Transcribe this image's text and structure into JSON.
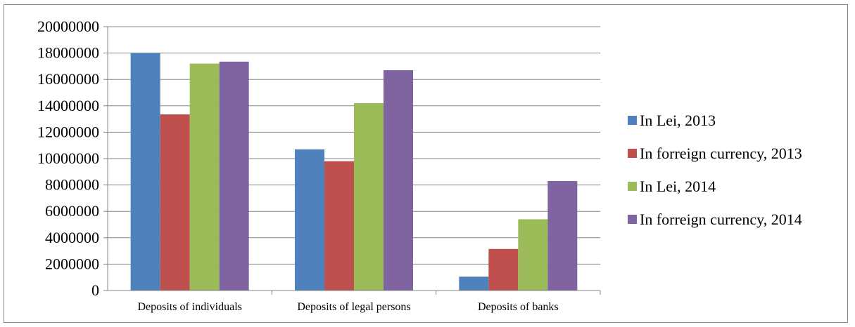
{
  "chart_data": {
    "type": "bar",
    "title": "",
    "xlabel": "",
    "ylabel": "",
    "categories": [
      "Deposits of individuals",
      "Deposits of legal persons",
      "Deposits of banks"
    ],
    "series": [
      {
        "name": "In Lei, 2013",
        "color": "#4F81BD",
        "values": [
          18000000,
          10700000,
          1050000
        ]
      },
      {
        "name": "In forreign currency, 2013",
        "color": "#C0504D",
        "values": [
          13350000,
          9800000,
          3150000
        ]
      },
      {
        "name": "In Lei, 2014",
        "color": "#9BBB59",
        "values": [
          17200000,
          14200000,
          5400000
        ]
      },
      {
        "name": "In forreign currency, 2014",
        "color": "#8064A2",
        "values": [
          17350000,
          16700000,
          8300000
        ]
      }
    ],
    "yticks": [
      "0",
      "2000000",
      "4000000",
      "6000000",
      "8000000",
      "10000000",
      "12000000",
      "14000000",
      "16000000",
      "18000000",
      "20000000"
    ],
    "ylim": [
      0,
      20000000
    ],
    "grid": true,
    "legend": "right"
  }
}
